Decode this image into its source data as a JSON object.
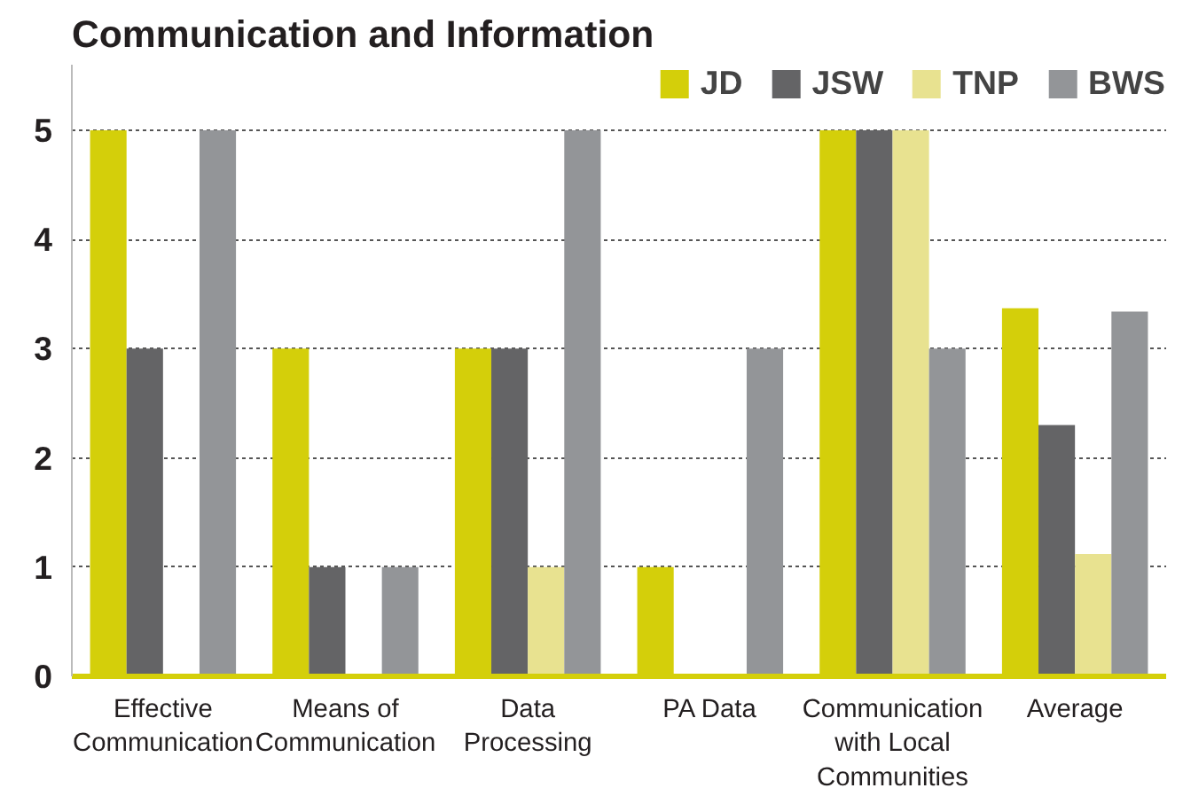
{
  "chart_data": {
    "type": "bar",
    "title": "Communication and Information",
    "categories": [
      "Effective Communication",
      "Means of Communication",
      "Data Processing",
      "PA Data",
      "Communication with Local Communities",
      "Average"
    ],
    "series": [
      {
        "name": "JD",
        "color": "#d4cf0a",
        "values": [
          5,
          3,
          3,
          1,
          5,
          3.37
        ]
      },
      {
        "name": "JSW",
        "color": "#646466",
        "values": [
          3,
          1,
          3,
          0,
          5,
          2.3
        ]
      },
      {
        "name": "TNP",
        "color": "#e8e290",
        "values": [
          0,
          0,
          1,
          0,
          5,
          1.12
        ]
      },
      {
        "name": "BWS",
        "color": "#939598",
        "values": [
          5,
          1,
          5,
          3,
          3,
          3.34
        ]
      }
    ],
    "ylim": [
      0,
      5.6
    ],
    "yticks": [
      0,
      1,
      2,
      3,
      4,
      5
    ],
    "grid": "y",
    "legend": "top right"
  }
}
